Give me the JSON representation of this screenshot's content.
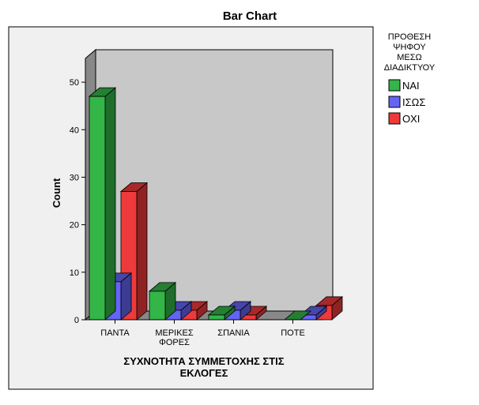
{
  "chart_data": {
    "type": "bar",
    "title": "Bar Chart",
    "xlabel": [
      "ΣΥΧΝΟΤΗΤΑ ΣΥΜΜΕΤΟΧΗΣ ΣΤΙΣ",
      "ΕΚΛΟΓΕΣ"
    ],
    "ylabel": "Count",
    "categories": [
      [
        "ΠΑΝΤΑ"
      ],
      [
        "ΜΕΡΙΚΕΣ",
        "ΦΟΡΕΣ"
      ],
      [
        "ΣΠΑΝΙΑ"
      ],
      [
        "ΠΟΤΕ"
      ]
    ],
    "ylim": [
      0,
      55
    ],
    "yticks": [
      0,
      10,
      20,
      30,
      40,
      50
    ],
    "legend_title": [
      "ΠΡΟΘΕΣΗ",
      "ΨΗΦΟΥ",
      "ΜΕΣΩ",
      "ΔΙΑΔΙΚΤΥΟΥ"
    ],
    "legend_position": "right",
    "grid": false,
    "series": [
      {
        "name": "ΝΑΙ",
        "color": "#33b548",
        "values": [
          47,
          6,
          1,
          0
        ]
      },
      {
        "name": "ΙΣΩΣ",
        "color": "#6464f5",
        "values": [
          8,
          2,
          2,
          1
        ]
      },
      {
        "name": "ΟΧΙ",
        "color": "#ee3a3a",
        "values": [
          27,
          2,
          1,
          3
        ]
      }
    ]
  }
}
